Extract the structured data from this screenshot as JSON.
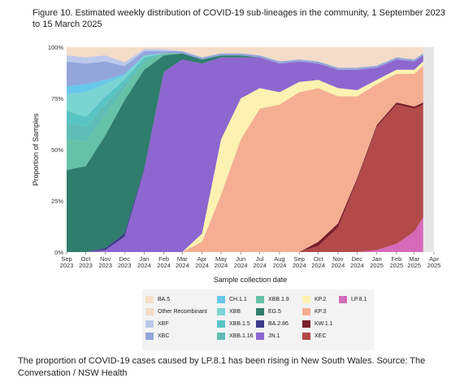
{
  "title": "Figure 10. Estimated weekly distribution of COVID-19 sub-lineages in the community, 1 September 2023 to 15 March 2025",
  "caption": "The proportion of COVID-19 cases caused by LP.8.1 has been rising in New South Wales. Source: The Conversation / NSW Health",
  "chart_data": {
    "type": "area",
    "stacked": true,
    "percent": true,
    "xlabel": "Sample collection date",
    "ylabel": "Proportion of Samples",
    "ylim": [
      0,
      100
    ],
    "yticks": [
      "0%",
      "25%",
      "50%",
      "75%",
      "100%"
    ],
    "xticks": [
      {
        "date": "2023-09-01",
        "line1": "Sep",
        "line2": "2023"
      },
      {
        "date": "2023-10-01",
        "line1": "Oct",
        "line2": "2023"
      },
      {
        "date": "2023-11-01",
        "line1": "Nov",
        "line2": "2023"
      },
      {
        "date": "2023-12-01",
        "line1": "Dec",
        "line2": "2023"
      },
      {
        "date": "2024-01-01",
        "line1": "Jan",
        "line2": "2024"
      },
      {
        "date": "2024-02-01",
        "line1": "Feb",
        "line2": "2024"
      },
      {
        "date": "2024-03-01",
        "line1": "Mar",
        "line2": "2024"
      },
      {
        "date": "2024-04-01",
        "line1": "Apr",
        "line2": "2024"
      },
      {
        "date": "2024-05-01",
        "line1": "May",
        "line2": "2024"
      },
      {
        "date": "2024-06-01",
        "line1": "Jun",
        "line2": "2024"
      },
      {
        "date": "2024-07-01",
        "line1": "Jul",
        "line2": "2024"
      },
      {
        "date": "2024-08-01",
        "line1": "Aug",
        "line2": "2024"
      },
      {
        "date": "2024-09-01",
        "line1": "Sep",
        "line2": "2024"
      },
      {
        "date": "2024-10-01",
        "line1": "Oct",
        "line2": "2024"
      },
      {
        "date": "2024-11-01",
        "line1": "Nov",
        "line2": "2024"
      },
      {
        "date": "2024-12-01",
        "line1": "Dec",
        "line2": "2024"
      },
      {
        "date": "2025-01-01",
        "line1": "Jan",
        "line2": "2025"
      },
      {
        "date": "2025-02-01",
        "line1": "Feb",
        "line2": "2025"
      },
      {
        "date": "2025-03-01",
        "line1": "Mar",
        "line2": "2025"
      },
      {
        "date": "2025-04-01",
        "line1": "Apr",
        "line2": "2025"
      }
    ],
    "x": [
      "2023-09-01",
      "2023-10-01",
      "2023-11-01",
      "2023-12-01",
      "2024-01-01",
      "2024-02-01",
      "2024-03-01",
      "2024-04-01",
      "2024-05-01",
      "2024-06-01",
      "2024-07-01",
      "2024-08-01",
      "2024-09-01",
      "2024-10-01",
      "2024-11-01",
      "2024-12-01",
      "2025-01-01",
      "2025-02-01",
      "2025-03-01",
      "2025-03-15"
    ],
    "series": [
      {
        "name": "LP.8.1",
        "color": "#d66ab9",
        "values": [
          0,
          0,
          0,
          0,
          0,
          0,
          0,
          0,
          0,
          0,
          0,
          0,
          0,
          0,
          0,
          0,
          1,
          4,
          10,
          17
        ]
      },
      {
        "name": "XEC",
        "color": "#b24a4a",
        "values": [
          0,
          0,
          0,
          0,
          0,
          0,
          0,
          0,
          0,
          0,
          0,
          0,
          0,
          3,
          12,
          35,
          60,
          68,
          60,
          55
        ]
      },
      {
        "name": "KW.1.1",
        "color": "#7a1e2a",
        "values": [
          0,
          0,
          0,
          0,
          0,
          0,
          0,
          0,
          0,
          0,
          0,
          0,
          0,
          2,
          2,
          1,
          1,
          1,
          1,
          1
        ]
      },
      {
        "name": "KP.3",
        "color": "#f5ae92",
        "values": [
          0,
          0,
          0,
          0,
          0,
          0,
          0,
          5,
          28,
          55,
          70,
          72,
          78,
          75,
          62,
          40,
          20,
          14,
          16,
          18
        ]
      },
      {
        "name": "KP.2",
        "color": "#fbf2b2",
        "values": [
          0,
          0,
          0,
          0,
          0,
          0,
          0,
          4,
          27,
          20,
          10,
          6,
          5,
          4,
          4,
          3,
          2,
          2,
          2,
          2
        ]
      },
      {
        "name": "JN.1",
        "color": "#8e66cf",
        "values": [
          0,
          0,
          1,
          8,
          40,
          88,
          94,
          83,
          40,
          20,
          15,
          14,
          10,
          8,
          9,
          10,
          6,
          5,
          4,
          3
        ]
      },
      {
        "name": "BA.2.86",
        "color": "#3c3c8c",
        "values": [
          0,
          0,
          1,
          2,
          1,
          0,
          0,
          0,
          0,
          0,
          0,
          0,
          0,
          0,
          0,
          0,
          0,
          0,
          0,
          0
        ]
      },
      {
        "name": "EG.5",
        "color": "#2f7d6d",
        "values": [
          40,
          42,
          55,
          70,
          48,
          8,
          3,
          2,
          1,
          1,
          0,
          0,
          0,
          0,
          0,
          0,
          0,
          0,
          0,
          0
        ]
      },
      {
        "name": "XBB.1.9",
        "color": "#66c2a6",
        "values": [
          15,
          12,
          10,
          6,
          4,
          1,
          0,
          0,
          0,
          0,
          0,
          0,
          0,
          0,
          0,
          0,
          0,
          0,
          0,
          0
        ]
      },
      {
        "name": "XBB.1.16",
        "color": "#5fbdb7",
        "values": [
          8,
          7,
          5,
          3,
          1,
          0,
          0,
          0,
          0,
          0,
          0,
          0,
          0,
          0,
          0,
          0,
          0,
          0,
          0,
          0
        ]
      },
      {
        "name": "XBB.1.5",
        "color": "#59c4c4",
        "values": [
          6,
          5,
          4,
          2,
          1,
          0,
          0,
          0,
          0,
          0,
          0,
          0,
          0,
          0,
          0,
          0,
          0,
          0,
          0,
          0
        ]
      },
      {
        "name": "XBB",
        "color": "#7ad5d2",
        "values": [
          8,
          12,
          6,
          2,
          1,
          0,
          0,
          0,
          0,
          0,
          0,
          0,
          0,
          0,
          0,
          0,
          0,
          0,
          0,
          0
        ]
      },
      {
        "name": "CH.1.1",
        "color": "#68c8ea",
        "values": [
          4,
          4,
          2,
          1,
          0,
          0,
          0,
          0,
          0,
          0,
          0,
          0,
          0,
          0,
          0,
          0,
          0,
          0,
          0,
          0
        ]
      },
      {
        "name": "XBC",
        "color": "#93a6dc",
        "values": [
          12,
          10,
          9,
          4,
          2,
          1,
          1,
          1,
          1,
          1,
          1,
          1,
          1,
          1,
          1,
          1,
          1,
          1,
          1,
          1
        ]
      },
      {
        "name": "XBF",
        "color": "#bcc8ec",
        "values": [
          3,
          3,
          3,
          2,
          1,
          1,
          0,
          0,
          0,
          0,
          0,
          0,
          0,
          0,
          0,
          0,
          0,
          0,
          0,
          0
        ]
      },
      {
        "name": "Other Recombinant",
        "color": "#f3dcc8",
        "values": [
          3,
          4,
          3,
          7,
          1,
          1,
          2,
          5,
          3,
          3,
          4,
          7,
          6,
          7,
          10,
          10,
          9,
          5,
          6,
          3
        ]
      },
      {
        "name": "BA.5",
        "color": "#f6dfc8",
        "values": [
          1,
          1,
          1,
          1,
          0,
          0,
          0,
          0,
          0,
          0,
          0,
          0,
          0,
          0,
          0,
          0,
          0,
          0,
          0,
          0
        ]
      }
    ],
    "legend": {
      "placement": "bottom",
      "columns": [
        [
          "BA.5",
          "Other Recombinant",
          "XBF",
          "XBC"
        ],
        [
          "CH.1.1",
          "XBB",
          "XBB.1.5",
          "XBB.1.16"
        ],
        [
          "XBB.1.9",
          "EG.5",
          "BA.2.86",
          "JN.1"
        ],
        [
          "KP.2",
          "KP.3",
          "KW.1.1",
          "XEC"
        ],
        [
          "LP.8.1"
        ]
      ]
    }
  }
}
